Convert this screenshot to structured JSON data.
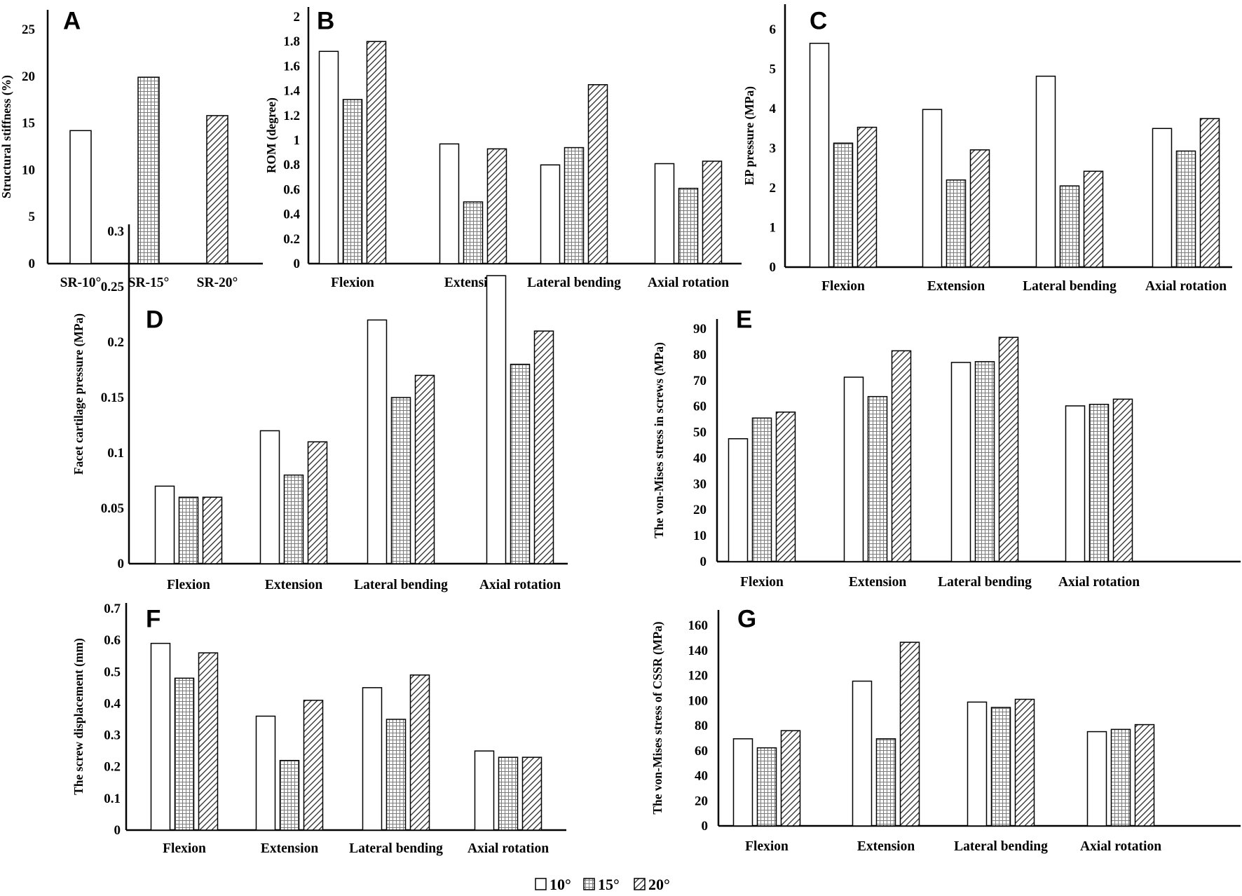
{
  "figure": {
    "legend": [
      {
        "name": "10°",
        "pattern": "white"
      },
      {
        "name": "15°",
        "pattern": "dots"
      },
      {
        "name": "20°",
        "pattern": "hatch"
      }
    ]
  },
  "chart_data": [
    {
      "id": "A",
      "type": "bar",
      "panel_label": "A",
      "title": "",
      "xlabel": "",
      "ylabel": "Structural stiffness (%)",
      "ylim": [
        0,
        25
      ],
      "yticks": [
        "0",
        "5",
        "10",
        "15",
        "20",
        "25"
      ],
      "categories": [
        "SR-10°",
        "SR-15°",
        "SR-20°"
      ],
      "series": [
        {
          "name": "value",
          "values": [
            14.2,
            19.9,
            15.8
          ]
        }
      ],
      "bar_patterns": [
        "white",
        "dots",
        "hatch"
      ]
    },
    {
      "id": "B",
      "type": "bar",
      "panel_label": "B",
      "title": "",
      "xlabel": "",
      "ylabel": "ROM (degree)",
      "ylim": [
        0,
        2
      ],
      "yticks": [
        "0",
        "0.2",
        "0.4",
        "0.6",
        "0.8",
        "1",
        "1.2",
        "1.4",
        "1.6",
        "1.8",
        "2"
      ],
      "categories": [
        "Flexion",
        "Extension",
        "Lateral bending",
        "Axial  rotation"
      ],
      "series": [
        {
          "name": "10°",
          "values": [
            1.72,
            0.97,
            0.8,
            0.81
          ]
        },
        {
          "name": "15°",
          "values": [
            1.33,
            0.5,
            0.94,
            0.61
          ]
        },
        {
          "name": "20°",
          "values": [
            1.8,
            0.93,
            1.45,
            0.83
          ]
        }
      ]
    },
    {
      "id": "C",
      "type": "bar",
      "panel_label": "C",
      "title": "",
      "xlabel": "",
      "ylabel": "EP pressure (MPa)",
      "ylim": [
        0,
        6
      ],
      "yticks": [
        "0",
        "1",
        "2",
        "3",
        "4",
        "5",
        "6"
      ],
      "categories": [
        "Flexion",
        "Extension",
        "Lateral bending",
        "Axial  rotation"
      ],
      "series": [
        {
          "name": "10°",
          "values": [
            5.65,
            3.98,
            4.82,
            3.5
          ]
        },
        {
          "name": "15°",
          "values": [
            3.13,
            2.2,
            2.05,
            2.93
          ]
        },
        {
          "name": "20°",
          "values": [
            3.53,
            2.96,
            2.42,
            3.75
          ]
        }
      ]
    },
    {
      "id": "D",
      "type": "bar",
      "panel_label": "D",
      "title": "",
      "xlabel": "",
      "ylabel": "Facet cartilage pressure (MPa)",
      "ylim": [
        0,
        0.3
      ],
      "yticks": [
        "0",
        "0.05",
        "0.1",
        "0.15",
        "0.2",
        "0.25",
        "0.3"
      ],
      "categories": [
        "Flexion",
        "Extension",
        "Lateral bending",
        "Axial  rotation"
      ],
      "series": [
        {
          "name": "10°",
          "values": [
            0.07,
            0.12,
            0.22,
            0.26
          ]
        },
        {
          "name": "15°",
          "values": [
            0.06,
            0.08,
            0.15,
            0.18
          ]
        },
        {
          "name": "20°",
          "values": [
            0.06,
            0.11,
            0.17,
            0.21
          ]
        }
      ]
    },
    {
      "id": "E",
      "type": "bar",
      "panel_label": "E",
      "title": "",
      "xlabel": "",
      "ylabel": "The von-Mises stress in screws (MPa)",
      "ylim": [
        0,
        90
      ],
      "yticks": [
        "0",
        "10",
        "20",
        "30",
        "40",
        "50",
        "60",
        "70",
        "80",
        "90"
      ],
      "categories": [
        "Flexion",
        "Extension",
        "Lateral bending",
        "Axial  rotation"
      ],
      "series": [
        {
          "name": "10°",
          "values": [
            47.5,
            71.3,
            77.0,
            60.2
          ]
        },
        {
          "name": "15°",
          "values": [
            55.5,
            63.8,
            77.3,
            60.8
          ]
        },
        {
          "name": "20°",
          "values": [
            57.8,
            81.5,
            86.7,
            62.8
          ]
        }
      ]
    },
    {
      "id": "F",
      "type": "bar",
      "panel_label": "F",
      "title": "",
      "xlabel": "",
      "ylabel": "The screw displacement (mm)",
      "ylim": [
        0,
        0.7
      ],
      "yticks": [
        "0",
        "0.1",
        "0.2",
        "0.3",
        "0.4",
        "0.5",
        "0.6",
        "0.7"
      ],
      "categories": [
        "Flexion",
        "Extension",
        "Lateral bending",
        "Axial  rotation"
      ],
      "series": [
        {
          "name": "10°",
          "values": [
            0.59,
            0.36,
            0.45,
            0.25
          ]
        },
        {
          "name": "15°",
          "values": [
            0.48,
            0.22,
            0.35,
            0.23
          ]
        },
        {
          "name": "20°",
          "values": [
            0.56,
            0.41,
            0.49,
            0.23
          ]
        }
      ]
    },
    {
      "id": "G",
      "type": "bar",
      "panel_label": "G",
      "title": "",
      "xlabel": "",
      "ylabel": "The von-Mises stress of CSSR (MPa)",
      "ylim": [
        0,
        160
      ],
      "yticks": [
        "0",
        "20",
        "40",
        "60",
        "80",
        "100",
        "120",
        "140",
        "160"
      ],
      "categories": [
        "Flexion",
        "Extension",
        "Lateral bending",
        "Axial  rotation"
      ],
      "series": [
        {
          "name": "10°",
          "values": [
            69.5,
            115.5,
            98.8,
            75.2
          ]
        },
        {
          "name": "15°",
          "values": [
            62.3,
            69.5,
            94.5,
            77.0
          ]
        },
        {
          "name": "20°",
          "values": [
            76.0,
            146.5,
            101.0,
            80.8
          ]
        }
      ]
    }
  ]
}
